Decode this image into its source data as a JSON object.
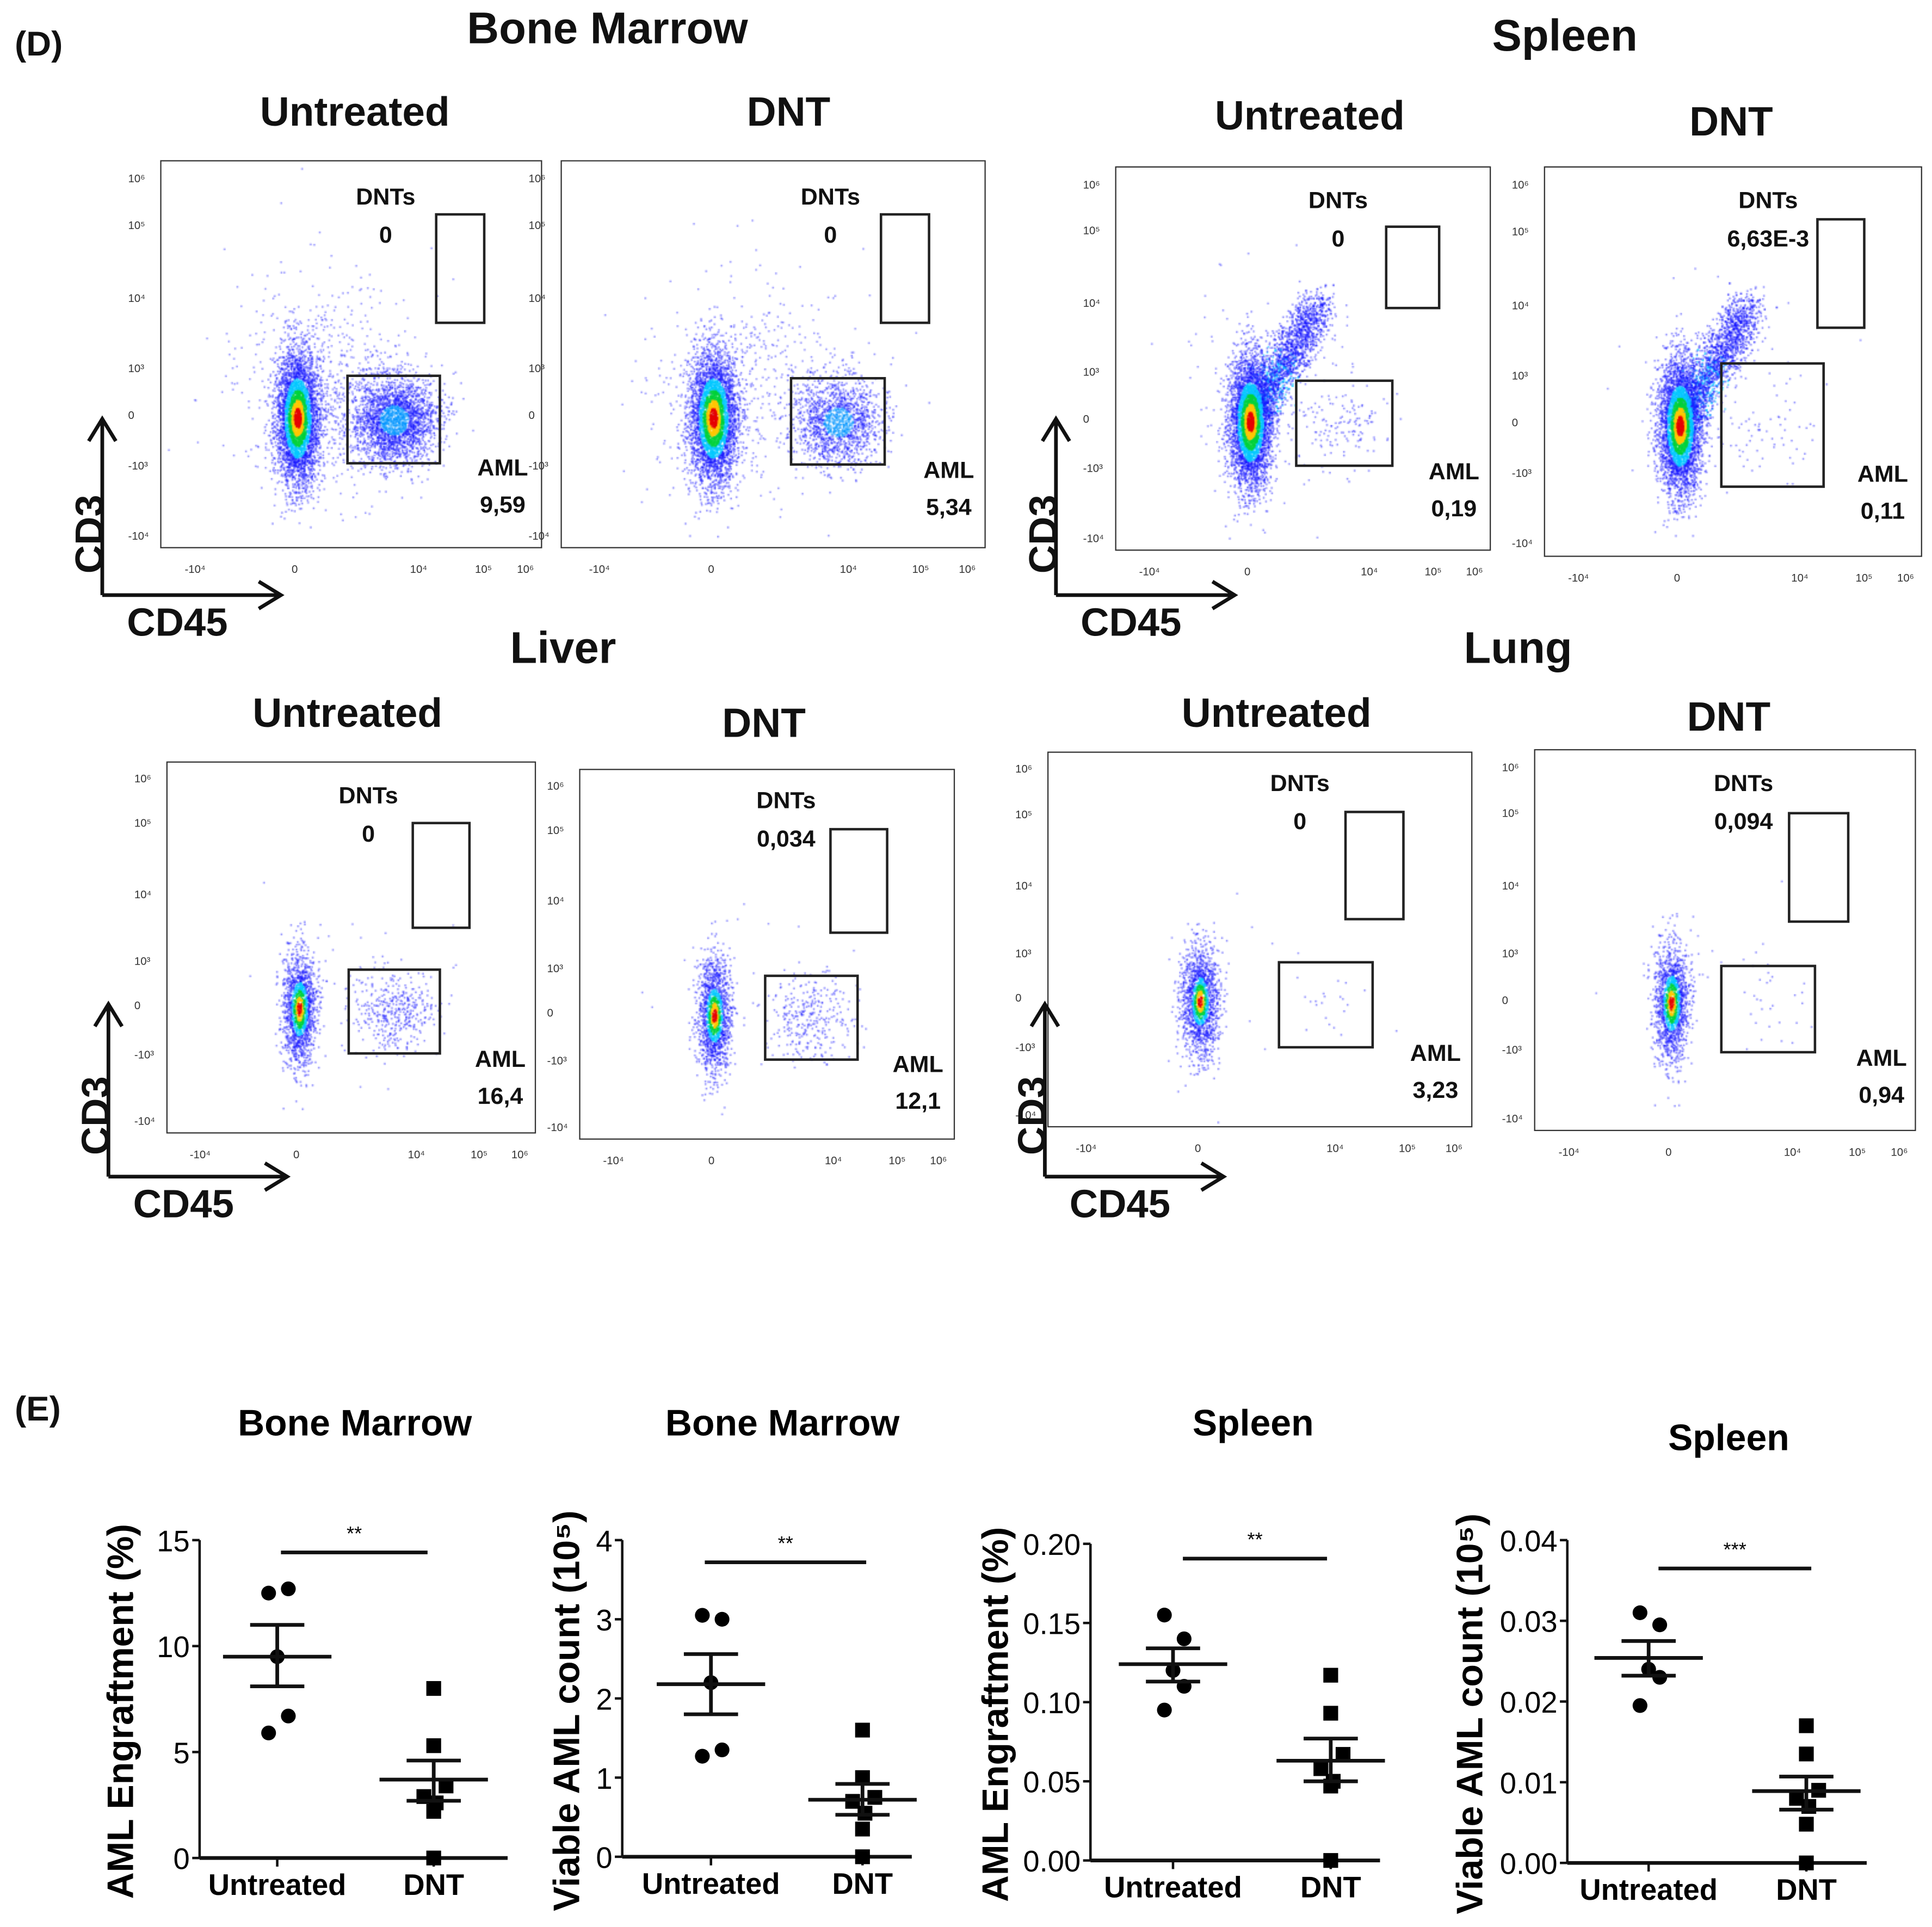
{
  "figure": {
    "panel_d_label": "(D)",
    "panel_e_label": "(E)"
  },
  "flow": {
    "axis": {
      "y_label": "CD3",
      "x_label": "CD45",
      "y_ticks": [
        "10⁶",
        "10⁵",
        "10⁴",
        "10³",
        "0",
        "-10³",
        "-10⁴"
      ],
      "x_ticks": [
        "-10⁴",
        "0",
        "10⁴",
        "10⁵",
        "10⁶"
      ]
    },
    "groups": [
      {
        "title": "Bone Marrow"
      },
      {
        "title": "Spleen"
      },
      {
        "title": "Liver"
      },
      {
        "title": "Lung"
      }
    ],
    "plots": [
      {
        "group": 0,
        "condition": "Untreated",
        "dnt_gate_label": "DNTs",
        "dnt_value": "0",
        "aml_gate_label": "AML",
        "aml_value": "9,59"
      },
      {
        "group": 0,
        "condition": "DNT",
        "dnt_gate_label": "DNTs",
        "dnt_value": "0",
        "aml_gate_label": "AML",
        "aml_value": "5,34"
      },
      {
        "group": 1,
        "condition": "Untreated",
        "dnt_gate_label": "DNTs",
        "dnt_value": "0",
        "aml_gate_label": "AML",
        "aml_value": "0,19"
      },
      {
        "group": 1,
        "condition": "DNT",
        "dnt_gate_label": "DNTs",
        "dnt_value": "6,63E-3",
        "aml_gate_label": "AML",
        "aml_value": "0,11"
      },
      {
        "group": 2,
        "condition": "Untreated",
        "dnt_gate_label": "DNTs",
        "dnt_value": "0",
        "aml_gate_label": "AML",
        "aml_value": "16,4"
      },
      {
        "group": 2,
        "condition": "DNT",
        "dnt_gate_label": "DNTs",
        "dnt_value": "0,034",
        "aml_gate_label": "AML",
        "aml_value": "12,1"
      },
      {
        "group": 3,
        "condition": "Untreated",
        "dnt_gate_label": "DNTs",
        "dnt_value": "0",
        "aml_gate_label": "AML",
        "aml_value": "3,23"
      },
      {
        "group": 3,
        "condition": "DNT",
        "dnt_gate_label": "DNTs",
        "dnt_value": "0,094",
        "aml_gate_label": "AML",
        "aml_value": "0,94"
      }
    ]
  },
  "chart_data": [
    {
      "type": "scatter",
      "title": "Bone Marrow",
      "ylabel": "AML Engraftment (%)",
      "categories": [
        "Untreated",
        "DNT"
      ],
      "series": [
        {
          "name": "Untreated",
          "marker": "circle",
          "values": [
            12.5,
            12.7,
            9.5,
            6.7,
            5.9
          ]
        },
        {
          "name": "DNT",
          "marker": "square",
          "values": [
            8.0,
            5.3,
            3.4,
            2.9,
            2.6,
            2.2,
            0
          ]
        }
      ],
      "mean": [
        9.5,
        3.7
      ],
      "sem_range": [
        [
          8.1,
          11.0
        ],
        [
          2.7,
          4.6
        ]
      ],
      "ylim": [
        0,
        15
      ],
      "yticks": [
        0,
        5,
        10,
        15
      ],
      "ytick_labels": [
        "0",
        "5",
        "10",
        "15"
      ],
      "significance": "**"
    },
    {
      "type": "scatter",
      "title": "Bone Marrow",
      "ylabel": "Viable AML count (10⁵)",
      "categories": [
        "Untreated",
        "DNT"
      ],
      "series": [
        {
          "name": "Untreated",
          "marker": "circle",
          "values": [
            3.05,
            3.0,
            2.2,
            1.35,
            1.27
          ]
        },
        {
          "name": "DNT",
          "marker": "square",
          "values": [
            1.6,
            1.0,
            0.75,
            0.7,
            0.55,
            0.35,
            0
          ]
        }
      ],
      "mean": [
        2.18,
        0.72
      ],
      "sem_range": [
        [
          1.8,
          2.56
        ],
        [
          0.53,
          0.92
        ]
      ],
      "ylim": [
        0,
        4
      ],
      "yticks": [
        0,
        1,
        2,
        3,
        4
      ],
      "ytick_labels": [
        "0",
        "1",
        "2",
        "3",
        "4"
      ],
      "significance": "**"
    },
    {
      "type": "scatter",
      "title": "Spleen",
      "ylabel": "AML Engraftment (%)",
      "categories": [
        "Untreated",
        "DNT"
      ],
      "series": [
        {
          "name": "Untreated",
          "marker": "circle",
          "values": [
            0.155,
            0.14,
            0.12,
            0.11,
            0.095
          ]
        },
        {
          "name": "DNT",
          "marker": "square",
          "values": [
            0.117,
            0.093,
            0.067,
            0.058,
            0.05,
            0.047,
            0
          ]
        }
      ],
      "mean": [
        0.124,
        0.063
      ],
      "sem_range": [
        [
          0.113,
          0.134
        ],
        [
          0.05,
          0.077
        ]
      ],
      "ylim": [
        0,
        0.2
      ],
      "yticks": [
        0,
        0.05,
        0.1,
        0.15,
        0.2
      ],
      "ytick_labels": [
        "0.00",
        "0.05",
        "0.10",
        "0.15",
        "0.20"
      ],
      "significance": "**"
    },
    {
      "type": "scatter",
      "title": "Spleen",
      "ylabel": "Viable AML count (10⁵)",
      "categories": [
        "Untreated",
        "DNT"
      ],
      "series": [
        {
          "name": "Untreated",
          "marker": "circle",
          "values": [
            0.031,
            0.0295,
            0.024,
            0.023,
            0.0195
          ]
        },
        {
          "name": "DNT",
          "marker": "square",
          "values": [
            0.017,
            0.0135,
            0.009,
            0.008,
            0.007,
            0.0048,
            0
          ]
        }
      ],
      "mean": [
        0.0254,
        0.0089
      ],
      "sem_range": [
        [
          0.0232,
          0.0275
        ],
        [
          0.0066,
          0.0107
        ]
      ],
      "ylim": [
        0,
        0.04
      ],
      "yticks": [
        0,
        0.01,
        0.02,
        0.03,
        0.04
      ],
      "ytick_labels": [
        "0.00",
        "0.01",
        "0.02",
        "0.03",
        "0.04"
      ],
      "significance": "***"
    }
  ]
}
